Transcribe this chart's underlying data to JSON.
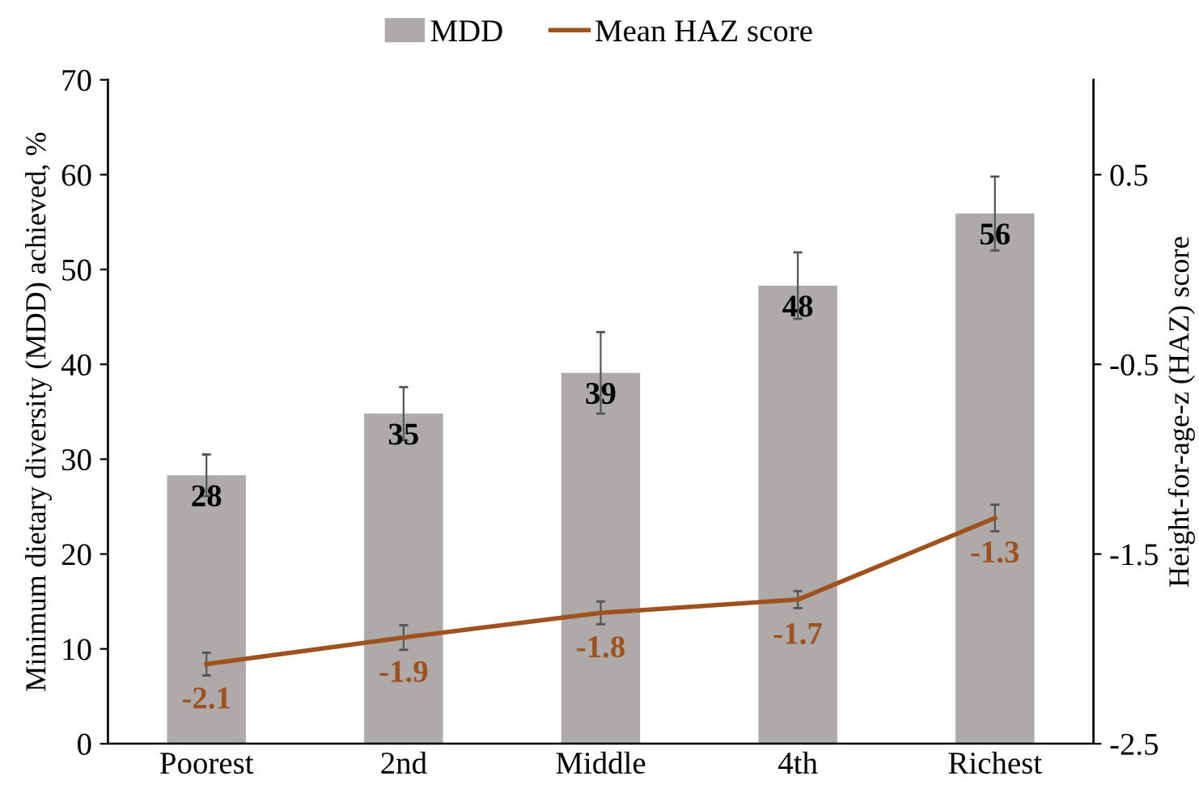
{
  "chart_data": {
    "type": "bar",
    "categories": [
      "Poorest",
      "2nd",
      "Middle",
      "4th",
      "Richest"
    ],
    "ylabel": "Minimum dietary diversity (MDD) achieved, %",
    "y2label": "Height-for-age-z (HAZ) score",
    "ylim": [
      0,
      70
    ],
    "yticks": [
      0,
      10,
      20,
      30,
      40,
      50,
      60,
      70
    ],
    "y2lim": [
      -2.5,
      1.0
    ],
    "y2ticks": [
      -2.5,
      -1.5,
      -0.5,
      0.5
    ],
    "legend": "top",
    "grid": false,
    "series": [
      {
        "name": "MDD",
        "color": "#aeaaaa",
        "values": [
          28.3,
          34.8,
          39.1,
          48.3,
          55.9
        ],
        "errors": [
          2.2,
          2.8,
          4.3,
          3.5,
          3.9
        ],
        "value_labels": [
          "28",
          "35",
          "39",
          "48",
          "56"
        ]
      },
      {
        "name": "Mean HAZ score",
        "type": "line",
        "axis": "y2",
        "color": "#a0521e",
        "marker": "none",
        "line_style": "solid",
        "values": [
          -2.08,
          -1.94,
          -1.81,
          -1.74,
          -1.31
        ],
        "errors": [
          0.06,
          0.065,
          0.06,
          0.045,
          0.07
        ],
        "value_labels": [
          "-2.1",
          "-1.9",
          "-1.8",
          "-1.7",
          "-1.3"
        ]
      }
    ]
  }
}
